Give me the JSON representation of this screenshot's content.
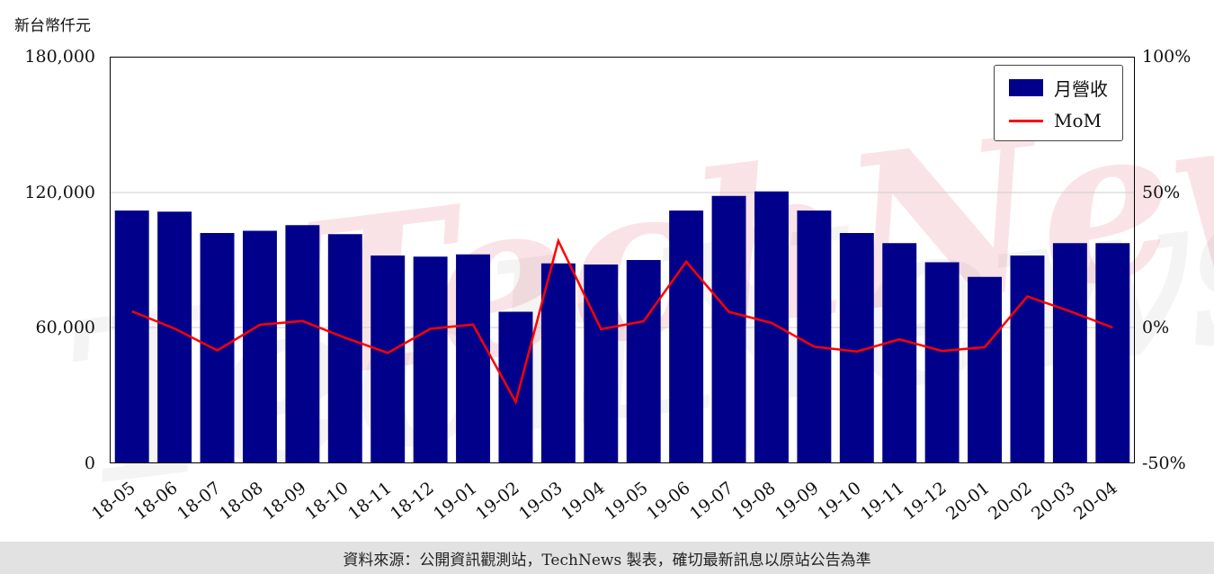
{
  "page": {
    "y_axis_unit_label": "新台幣仟元",
    "watermark_text": "TechNews",
    "footer_text": "資料來源：公開資訊觀測站，TechNews 製表，確切最新訊息以原站公告為準"
  },
  "chart_data": {
    "type": "bar",
    "title": "",
    "xlabel": "",
    "ylabel": "新台幣仟元",
    "categories": [
      "18-05",
      "18-06",
      "18-07",
      "18-08",
      "18-09",
      "18-10",
      "18-11",
      "18-12",
      "19-01",
      "19-02",
      "19-03",
      "19-04",
      "19-05",
      "19-06",
      "19-07",
      "19-08",
      "19-09",
      "19-10",
      "19-11",
      "19-12",
      "20-01",
      "20-02",
      "20-03",
      "20-04"
    ],
    "series": [
      {
        "name": "月營收",
        "type": "bar",
        "axis": "left",
        "color": "#00008B",
        "values": [
          112000,
          111500,
          102000,
          103000,
          105500,
          101500,
          92000,
          91500,
          92500,
          67000,
          88500,
          88000,
          90000,
          112000,
          118500,
          120500,
          112000,
          102000,
          97500,
          89000,
          82500,
          92000,
          97500,
          97500
        ]
      },
      {
        "name": "MoM",
        "type": "line",
        "axis": "right",
        "color": "#ff0000",
        "values": [
          6.0,
          -0.4,
          -8.5,
          1.0,
          2.4,
          -3.8,
          -9.4,
          -0.5,
          1.1,
          -27.6,
          32.1,
          -0.6,
          2.3,
          24.4,
          5.8,
          1.7,
          -7.1,
          -8.9,
          -4.4,
          -8.7,
          -7.3,
          11.5,
          6.0,
          0.0
        ]
      }
    ],
    "left_axis": {
      "min": 0,
      "max": 180000,
      "ticks": [
        "0",
        "60,000",
        "120,000",
        "180,000"
      ],
      "tick_values": [
        0,
        60000,
        120000,
        180000
      ],
      "grid_values": [
        60000,
        120000
      ]
    },
    "right_axis": {
      "min": -50,
      "max": 100,
      "ticks": [
        "-50%",
        "0%",
        "50%",
        "100%"
      ],
      "tick_values": [
        -50,
        0,
        50,
        100
      ]
    },
    "legend": {
      "position": "upper right",
      "entries": [
        "月營收",
        "MoM"
      ]
    },
    "grid": true
  }
}
